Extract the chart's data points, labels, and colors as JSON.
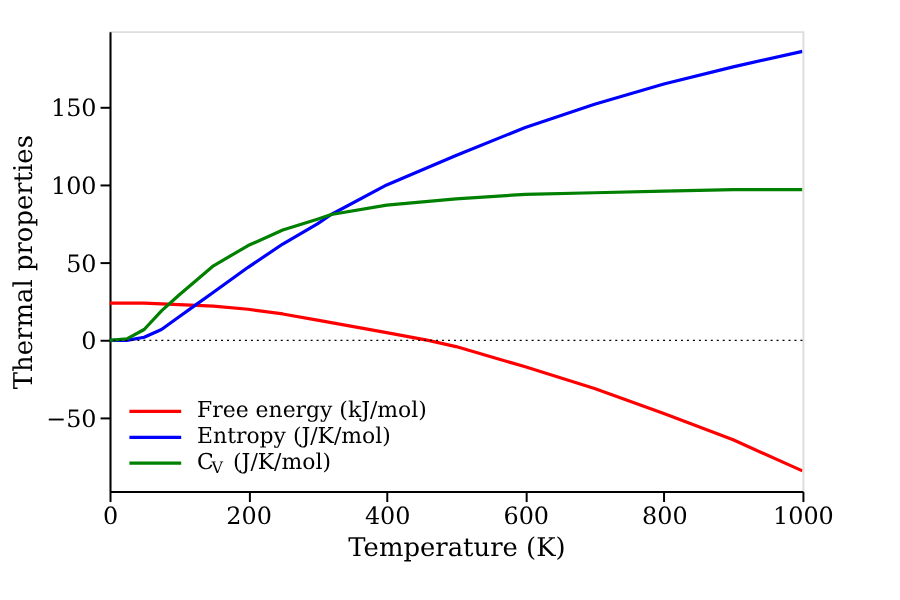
{
  "chart_data": {
    "type": "line",
    "xlabel": "Temperature (K)",
    "ylabel": "Thermal properties",
    "xlim": [
      0,
      1000
    ],
    "xticks": [
      0,
      200,
      400,
      600,
      800,
      1000
    ],
    "ylim": [
      -97,
      199
    ],
    "yticks": [
      -50,
      0,
      50,
      100,
      150
    ],
    "grid": false,
    "legend": "bottom left",
    "line_style": "solid",
    "marker": "none",
    "ref_lines": [
      {
        "axis": "y",
        "value": 0,
        "color": "#000000",
        "line_style": "dotted"
      }
    ],
    "series": [
      {
        "name": "Free energy (kJ/mol)",
        "color": "#ff0000",
        "x": [
          0,
          50,
          100,
          150,
          200,
          250,
          300,
          350,
          400,
          460,
          500,
          600,
          700,
          800,
          900,
          1000
        ],
        "values": [
          24,
          24,
          23,
          22,
          20,
          17,
          13,
          9,
          5,
          0,
          -4,
          -17,
          -31,
          -47,
          -64,
          -84
        ]
      },
      {
        "name": "Entropy (J/K/mol)",
        "color": "#0000ff",
        "x": [
          0,
          25,
          50,
          75,
          100,
          125,
          150,
          200,
          250,
          300,
          320,
          400,
          500,
          600,
          700,
          800,
          900,
          1000
        ],
        "values": [
          0,
          0,
          2,
          7,
          15,
          23,
          31,
          47,
          62,
          75,
          81,
          100,
          119,
          137,
          152,
          165,
          176,
          186
        ]
      },
      {
        "name": "C$_{V}$ (J/K/mol)",
        "color": "#008000",
        "x": [
          0,
          25,
          50,
          75,
          100,
          150,
          200,
          250,
          300,
          320,
          400,
          500,
          600,
          700,
          800,
          900,
          1000
        ],
        "values": [
          0,
          1,
          7,
          19,
          29,
          48,
          61,
          71,
          78,
          81,
          87,
          91,
          94,
          95,
          96,
          97,
          97
        ]
      }
    ]
  }
}
